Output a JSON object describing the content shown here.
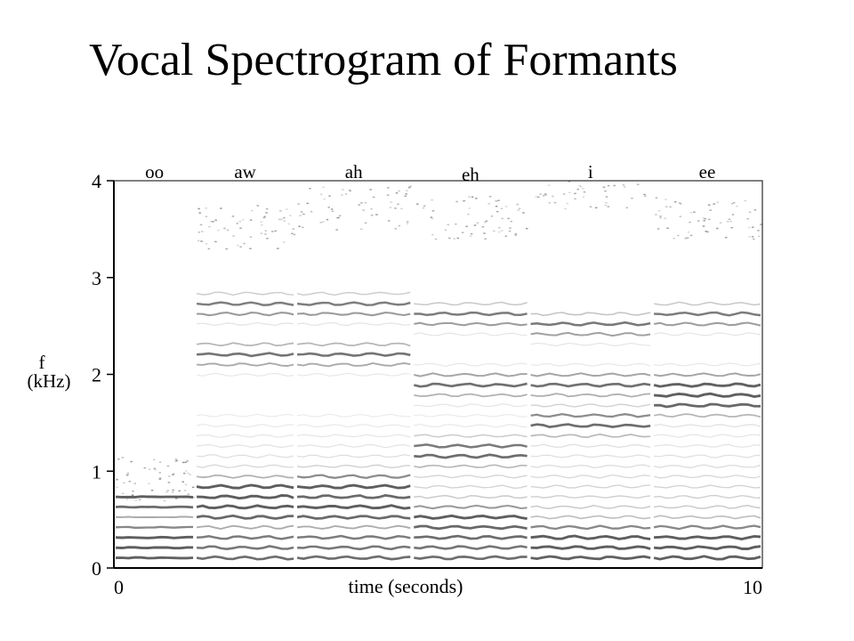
{
  "title": "Vocal Spectrogram of Formants",
  "chart_data": {
    "type": "heatmap",
    "xlabel": "time (seconds)",
    "ylabel_line1": "f",
    "ylabel_line2": "(kHz)",
    "xlim": [
      0,
      10
    ],
    "ylim": [
      0,
      4
    ],
    "x_tick_labels": [
      "0",
      "10"
    ],
    "y_tick_labels": [
      "0",
      "1",
      "2",
      "3",
      "4"
    ],
    "y_ticks": [
      0,
      1,
      2,
      3,
      4
    ],
    "ink_color": "#555555",
    "segments": [
      {
        "label": "oo",
        "t_start": 0.0,
        "t_end": 1.25,
        "formants_khz": [
          0.3,
          0.7
        ],
        "top_khz": 0.8
      },
      {
        "label": "aw",
        "t_start": 1.25,
        "t_end": 2.8,
        "formants_khz": [
          0.6,
          0.8,
          2.2,
          2.7
        ],
        "top_khz": 3.4
      },
      {
        "label": "ah",
        "t_start": 2.8,
        "t_end": 4.6,
        "formants_khz": [
          0.6,
          0.85,
          2.2,
          2.7
        ],
        "top_khz": 3.6
      },
      {
        "label": "eh",
        "t_start": 4.6,
        "t_end": 6.4,
        "formants_khz": [
          0.5,
          1.2,
          1.9,
          2.6
        ],
        "top_khz": 3.5
      },
      {
        "label": "i",
        "t_start": 6.4,
        "t_end": 8.3,
        "formants_khz": [
          0.3,
          1.5,
          1.9,
          2.5
        ],
        "top_khz": 3.8
      },
      {
        "label": "ee",
        "t_start": 8.3,
        "t_end": 10.0,
        "formants_khz": [
          0.3,
          1.7,
          1.9,
          2.6
        ],
        "top_khz": 3.5
      }
    ]
  }
}
